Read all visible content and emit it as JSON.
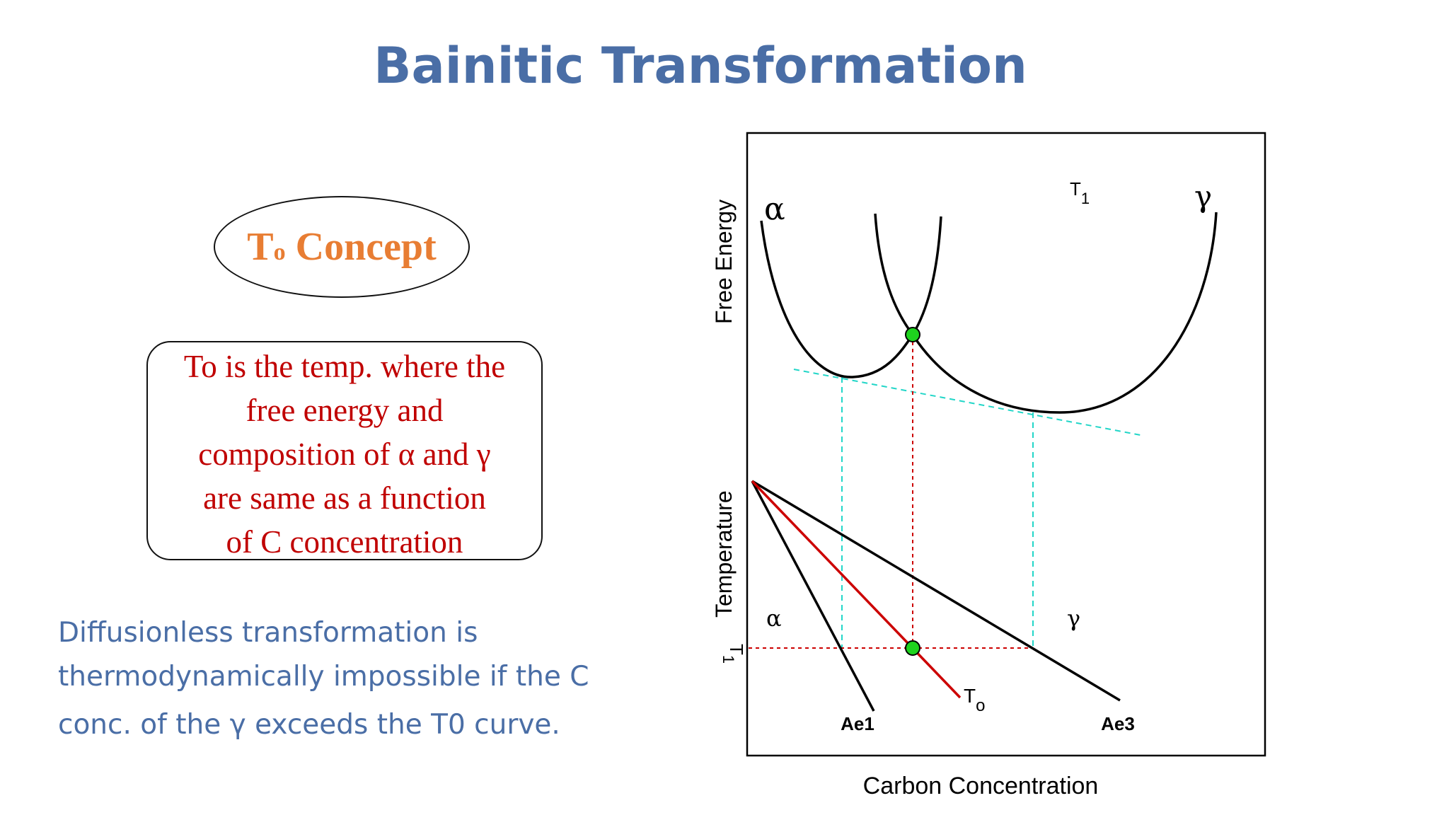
{
  "title": "Bainitic Transformation",
  "concept": {
    "main": "T",
    "sub": "o",
    "rest": " Concept"
  },
  "definition_lines": [
    "To is the temp. where the",
    "free energy and",
    "composition of α and γ",
    "are same as a function",
    "of  C concentration"
  ],
  "body_lines": [
    "Diffusionless transformation is",
    "thermodynamically impossible if the C",
    "conc. of the γ exceeds the T0 curve."
  ],
  "diagram": {
    "ylabel_top": "Free Energy",
    "ylabel_bottom": "Temperature",
    "xlabel": "Carbon Concentration",
    "alpha": "α",
    "gamma": "γ",
    "t_main": "T",
    "t_sub": "1",
    "to_main": "T",
    "to_sub": "o",
    "ae1": "Ae1",
    "ae3": "Ae3",
    "colors": {
      "black": "#000000",
      "red": "#cc0000",
      "cyan": "#22d6c8",
      "dot": "#1ed31e"
    }
  }
}
